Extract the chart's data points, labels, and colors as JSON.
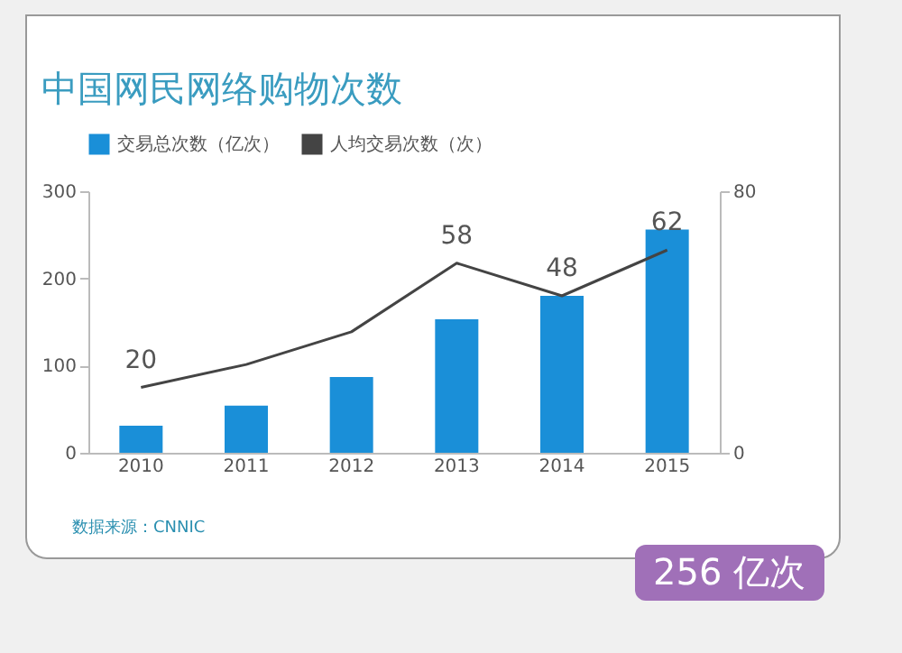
{
  "chart_data": {
    "type": "bar",
    "title": "中国网民网络购物次数",
    "categories": [
      "2010",
      "2011",
      "2012",
      "2013",
      "2014",
      "2015"
    ],
    "series": [
      {
        "name": "交易总次数（亿次）",
        "color": "#1a8fd8",
        "values": [
          31,
          54,
          87,
          153,
          180,
          256
        ]
      },
      {
        "name": "人均交易次数（次）",
        "type": "line",
        "axis": "y2",
        "color": "#444444",
        "values": [
          20,
          27,
          37,
          58,
          48,
          62
        ],
        "value_labels": [
          "20",
          null,
          null,
          "58",
          "48",
          "62"
        ]
      }
    ],
    "ylim": [
      0,
      300
    ],
    "yticks": [
      0,
      100,
      200,
      300
    ],
    "y2lim": [
      0,
      80
    ],
    "y2ticks": [
      0,
      80
    ],
    "legend": "top left",
    "marker": "none",
    "annotations": [
      "256 亿次",
      "数据来源：CNNIC"
    ]
  }
}
